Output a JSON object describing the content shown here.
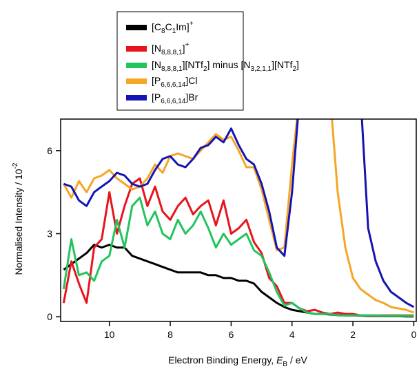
{
  "chart_data": {
    "type": "line",
    "x_label": "Electron Binding Energy, EB / eV",
    "y_label": "Normalised Intensity / 10-2",
    "xlim": [
      11.6,
      -0.08
    ],
    "ylim": [
      -0.17,
      7.14
    ],
    "xticks": [
      10,
      8,
      6,
      4,
      2,
      0
    ],
    "yticks": [
      0,
      3,
      6
    ],
    "legend": "top",
    "x": [
      11.5,
      11.25,
      11,
      10.75,
      10.5,
      10.25,
      10,
      9.75,
      9.5,
      9.25,
      9,
      8.75,
      8.5,
      8.25,
      8,
      7.75,
      7.5,
      7.25,
      7,
      6.75,
      6.5,
      6.25,
      6,
      5.75,
      5.5,
      5.25,
      5,
      4.75,
      4.5,
      4.25,
      4,
      3.75,
      3.5,
      3.25,
      3,
      2.75,
      2.5,
      2.25,
      2,
      1.75,
      1.5,
      1.25,
      1,
      0.75,
      0.5,
      0.25,
      0
    ],
    "series": [
      {
        "name": "[C8C1Im]+",
        "color": "#000000",
        "values": [
          1.7,
          1.9,
          2.1,
          2.3,
          2.6,
          2.5,
          2.6,
          2.5,
          2.5,
          2.2,
          2.1,
          2.0,
          1.9,
          1.8,
          1.7,
          1.6,
          1.6,
          1.6,
          1.6,
          1.5,
          1.5,
          1.4,
          1.4,
          1.3,
          1.3,
          1.2,
          0.9,
          0.7,
          0.5,
          0.35,
          0.25,
          0.2,
          0.15,
          0.1,
          0.1,
          0.08,
          0.06,
          0.05,
          0.05,
          0.04,
          0.03,
          0.03,
          0.02,
          0.02,
          0.02,
          0.01,
          0.01
        ]
      },
      {
        "name": "[N8,8,8,1]+",
        "color": "#e8141c",
        "values": [
          0.5,
          2.0,
          1.2,
          0.5,
          2.5,
          2.8,
          4.5,
          3.0,
          4.0,
          4.8,
          5.0,
          4.0,
          4.7,
          3.8,
          3.5,
          4.0,
          4.3,
          3.7,
          4.0,
          4.2,
          3.3,
          4.2,
          3.0,
          3.2,
          3.5,
          2.7,
          2.3,
          1.4,
          1.1,
          0.5,
          0.5,
          0.3,
          0.2,
          0.25,
          0.15,
          0.1,
          0.15,
          0.1,
          0.1,
          0.05,
          0.05,
          0.05,
          0.05,
          0.05,
          0.05,
          0.05,
          0.05
        ]
      },
      {
        "name": "[N8,8,8,1][NTf2] minus [N3,2,1,1][NTf2]",
        "color": "#22c45e",
        "values": [
          1.0,
          2.8,
          1.5,
          1.6,
          1.3,
          2.0,
          2.2,
          3.5,
          2.5,
          4.0,
          4.3,
          3.3,
          3.8,
          3.0,
          2.8,
          3.5,
          3.0,
          3.3,
          3.8,
          3.2,
          2.5,
          3.0,
          2.6,
          2.8,
          3.0,
          2.4,
          2.2,
          1.6,
          0.9,
          0.4,
          0.5,
          0.3,
          0.15,
          0.1,
          0.1,
          0.1,
          0.05,
          0.05,
          0.05,
          0.05,
          0.05,
          0.05,
          0.03,
          0.03,
          0.03,
          0.03,
          0.03
        ]
      },
      {
        "name": "[P6,6,6,14]Cl",
        "color": "#f5a623",
        "values": [
          4.8,
          4.3,
          4.9,
          4.5,
          5.0,
          5.1,
          5.3,
          5.0,
          4.8,
          4.6,
          4.7,
          5.0,
          5.5,
          5.2,
          5.8,
          5.9,
          5.8,
          5.7,
          6.0,
          6.3,
          6.6,
          6.4,
          6.5,
          6.0,
          5.4,
          5.4,
          4.6,
          3.5,
          2.4,
          2.5,
          5.5,
          8,
          8,
          8,
          8,
          8,
          4.5,
          2.5,
          1.4,
          1.0,
          0.8,
          0.6,
          0.5,
          0.35,
          0.3,
          0.25,
          0.15
        ]
      },
      {
        "name": "[P6,6,6,14]Br",
        "color": "#1414b4",
        "values": [
          4.8,
          4.7,
          4.2,
          4.0,
          4.5,
          4.7,
          4.9,
          5.2,
          5.1,
          4.8,
          4.7,
          4.8,
          5.3,
          5.7,
          5.8,
          5.5,
          5.4,
          5.7,
          6.1,
          6.2,
          6.5,
          6.3,
          6.8,
          6.2,
          5.7,
          5.5,
          4.8,
          3.8,
          2.5,
          2.2,
          4.5,
          8,
          8,
          8,
          8,
          8,
          8,
          8,
          8,
          8,
          3.2,
          2.0,
          1.3,
          0.9,
          0.7,
          0.5,
          0.35
        ]
      }
    ]
  }
}
